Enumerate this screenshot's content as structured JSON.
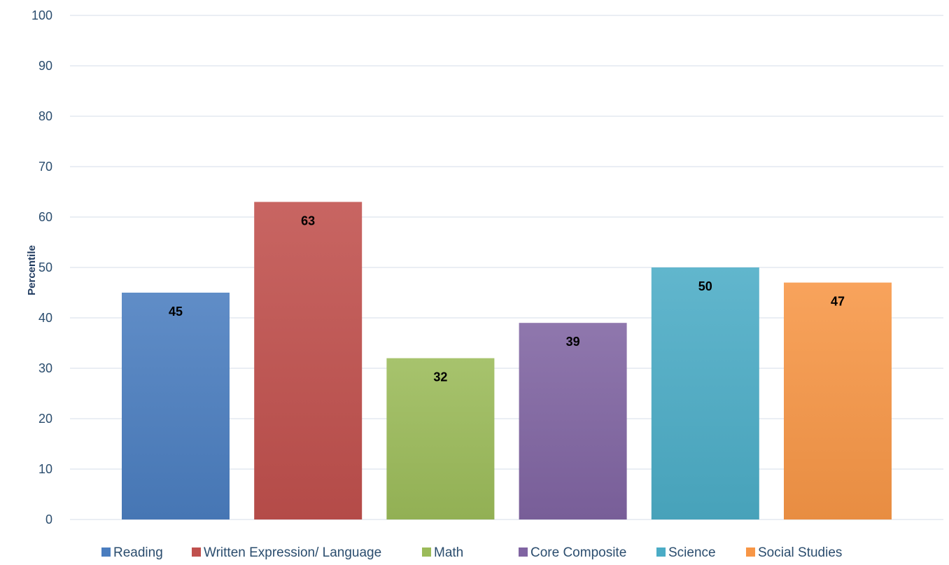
{
  "chart_data": {
    "type": "bar",
    "categories": [
      "Reading",
      "Written Expression/ Language",
      "Math",
      "Core Composite",
      "Science",
      "Social Studies"
    ],
    "values": [
      45,
      63,
      32,
      39,
      50,
      47
    ],
    "colors": [
      "#4a7dbf",
      "#c0504d",
      "#9bbb59",
      "#8064a2",
      "#4bacc6",
      "#f79646"
    ],
    "ylabel": "Percentile",
    "ylim": [
      0,
      100
    ],
    "yticks": [
      0,
      10,
      20,
      30,
      40,
      50,
      60,
      70,
      80,
      90,
      100
    ],
    "grid": true,
    "legend_position": "bottom",
    "data_labels": [
      "45",
      "63",
      "32",
      "39",
      "50",
      "47"
    ]
  }
}
